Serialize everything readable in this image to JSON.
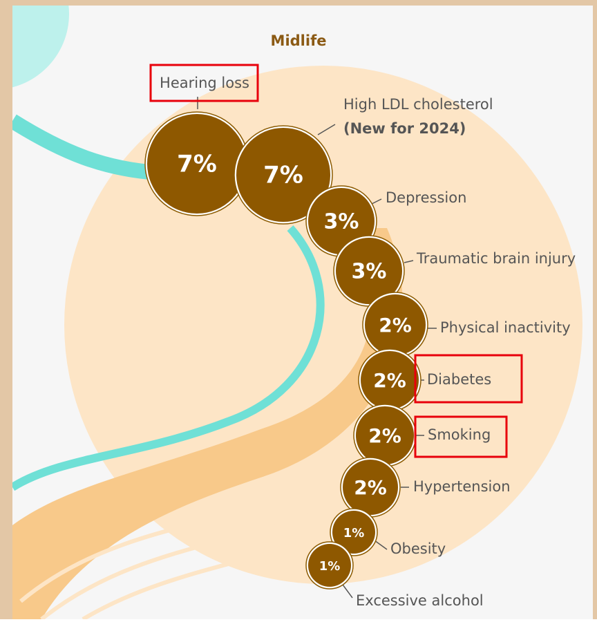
{
  "title": "Midlife",
  "nodes": [
    {
      "label": "Hearing loss",
      "value": "7%"
    },
    {
      "label": "High LDL cholesterol",
      "note": "(New for 2024)",
      "value": "7%"
    },
    {
      "label": "Depression",
      "value": "3%"
    },
    {
      "label": "Traumatic brain injury",
      "value": "3%"
    },
    {
      "label": "Physical inactivity",
      "value": "2%"
    },
    {
      "label": "Diabetes",
      "value": "2%"
    },
    {
      "label": "Smoking",
      "value": "2%"
    },
    {
      "label": "Hypertension",
      "value": "2%"
    },
    {
      "label": "Obesity",
      "value": "1%"
    },
    {
      "label": "Excessive alcohol",
      "value": "1%"
    }
  ]
}
